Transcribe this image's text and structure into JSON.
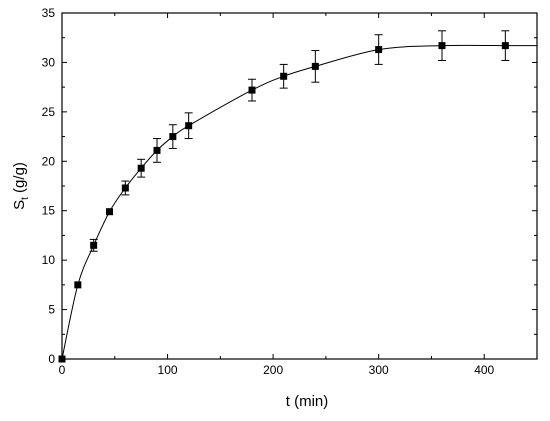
{
  "chart_data": {
    "type": "line",
    "title": "",
    "xlabel": "t (min)",
    "ylabel": {
      "main": "S",
      "sub": "t",
      "unit": " (g/g)"
    },
    "xlim": [
      0,
      450
    ],
    "ylim": [
      0,
      35
    ],
    "x_ticks": [
      0,
      100,
      200,
      300,
      400
    ],
    "y_ticks": [
      0,
      5,
      10,
      15,
      20,
      25,
      30,
      35
    ],
    "grid": false,
    "legend": "none",
    "marker": "square",
    "line_color": "#000000",
    "series": [
      {
        "x": [
          0,
          15,
          30,
          45,
          60,
          75,
          90,
          105,
          120,
          180,
          210,
          240,
          300,
          360,
          420
        ],
        "y": [
          0,
          7.5,
          11.5,
          14.9,
          17.3,
          19.3,
          21.1,
          22.5,
          23.6,
          27.2,
          28.6,
          29.6,
          31.3,
          31.7,
          31.7
        ],
        "error": [
          0,
          0,
          0.6,
          0,
          0.7,
          0.9,
          1.2,
          1.2,
          1.3,
          1.1,
          1.2,
          1.6,
          1.5,
          1.5,
          1.5
        ]
      }
    ]
  }
}
